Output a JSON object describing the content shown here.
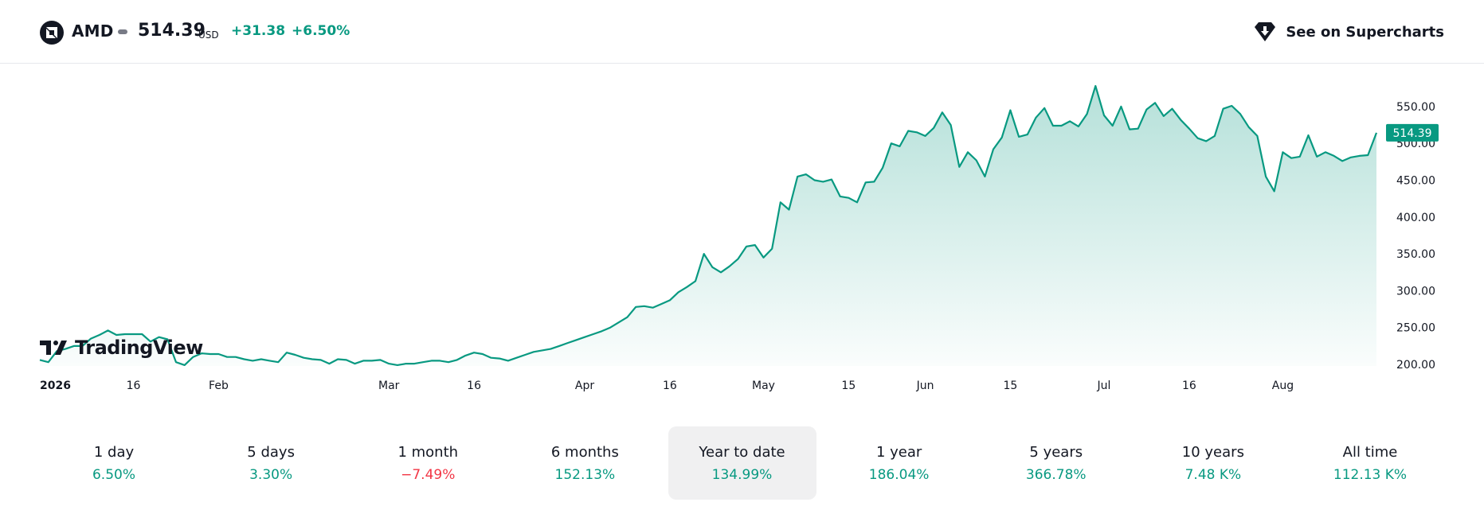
{
  "header": {
    "symbol": "AMD",
    "price": "514.39",
    "currency": "USD",
    "change_abs": "+31.38",
    "change_pct": "+6.50%",
    "supercharts_label": "See on Supercharts",
    "logo_icon": "amd-logo-icon",
    "supercharts_icon": "tradingview-shield-icon"
  },
  "colors": {
    "line": "#089981",
    "positive": "#089981",
    "negative": "#f23645",
    "price_tag_bg": "#089981",
    "selected_period_bg": "#f0f0f1"
  },
  "chart_data": {
    "type": "area",
    "series": [
      {
        "values": [
          206,
          203,
          218,
          221,
          225,
          225,
          235,
          240,
          246,
          240,
          241,
          241,
          241,
          231,
          237,
          234,
          203,
          199,
          210,
          215,
          214,
          214,
          210,
          210,
          207,
          205,
          207,
          205,
          203,
          216,
          213,
          209,
          207,
          206,
          201,
          207,
          206,
          201,
          205,
          205,
          206,
          201,
          199,
          201,
          201,
          203,
          205,
          205,
          203,
          206,
          212,
          216,
          214,
          209,
          208,
          205,
          209,
          213,
          217,
          219,
          221,
          225,
          229,
          233,
          237,
          241,
          245,
          250,
          257,
          264,
          278,
          279,
          277,
          282,
          287,
          298,
          305,
          313,
          350,
          332,
          325,
          333,
          343,
          360,
          362,
          345,
          357,
          420,
          410,
          455,
          458,
          450,
          448,
          451,
          428,
          426,
          420,
          447,
          448,
          467,
          500,
          496,
          517,
          515,
          510,
          521,
          542,
          525,
          468,
          488,
          477,
          455,
          492,
          508,
          545,
          509,
          512,
          535,
          548,
          524,
          524,
          530,
          523,
          540,
          578,
          538,
          524,
          550,
          519,
          520,
          546,
          555,
          537,
          547,
          532,
          520,
          507,
          503,
          510,
          547,
          551,
          540,
          522,
          510,
          455,
          435,
          488,
          480,
          482,
          511,
          482,
          488,
          483,
          476,
          481,
          483,
          484,
          514.39
        ],
        "first_value": 206,
        "last_value": 514.39
      }
    ],
    "x_labels": [
      "2026",
      "16",
      "Feb",
      "Mar",
      "16",
      "Apr",
      "16",
      "May",
      "15",
      "Jun",
      "15",
      "Jul",
      "16",
      "Aug"
    ],
    "y_ticks": [
      "550.00",
      "500.00",
      "450.00",
      "400.00",
      "350.00",
      "300.00",
      "250.00",
      "200.00"
    ],
    "ylim": [
      200,
      600
    ],
    "last_price_label": "514.39",
    "grid": false,
    "watermark": "TradingView"
  },
  "periods": [
    {
      "label": "1 day",
      "value": "6.50%",
      "sign": "pos"
    },
    {
      "label": "5 days",
      "value": "3.30%",
      "sign": "pos"
    },
    {
      "label": "1 month",
      "value": "−7.49%",
      "sign": "neg"
    },
    {
      "label": "6 months",
      "value": "152.13%",
      "sign": "pos"
    },
    {
      "label": "Year to date",
      "value": "134.99%",
      "sign": "pos",
      "selected": true
    },
    {
      "label": "1 year",
      "value": "186.04%",
      "sign": "pos"
    },
    {
      "label": "5 years",
      "value": "366.78%",
      "sign": "pos"
    },
    {
      "label": "10 years",
      "value": "7.48 K%",
      "sign": "pos"
    },
    {
      "label": "All time",
      "value": "112.13 K%",
      "sign": "pos"
    }
  ]
}
